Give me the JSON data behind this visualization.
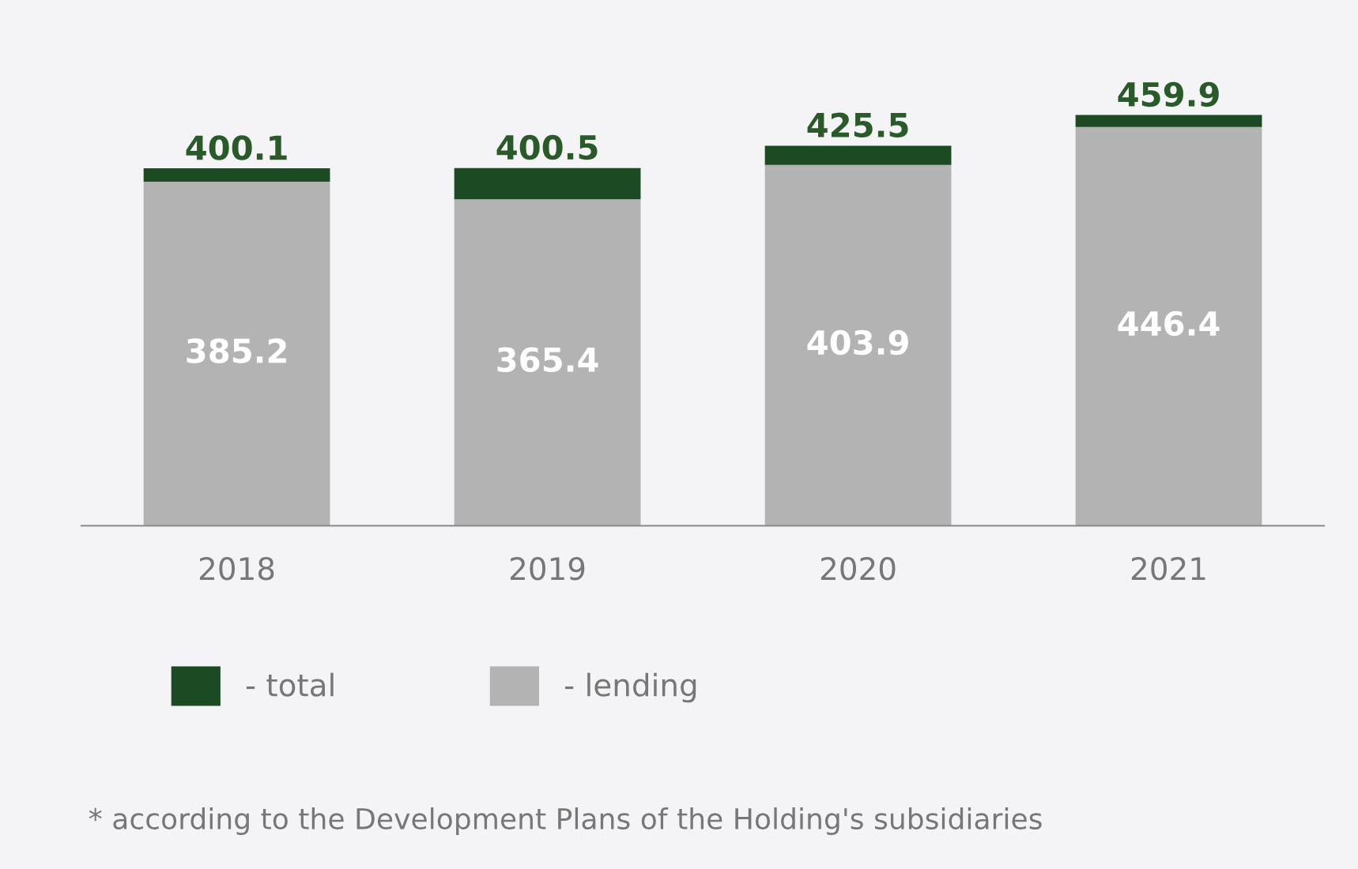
{
  "chart_data": {
    "type": "bar",
    "stacked": true,
    "categories": [
      "2018",
      "2019",
      "2020",
      "2021"
    ],
    "series": [
      {
        "name": "- lending",
        "color": "#b3b3b3",
        "values": [
          385.2,
          365.4,
          403.9,
          446.4
        ],
        "value_labels": [
          "385.2",
          "365.4",
          "403.9",
          "446.4"
        ]
      },
      {
        "name": "- total",
        "color": "#1c4a23",
        "values": [
          14.9,
          35.1,
          21.6,
          13.5
        ]
      }
    ],
    "totals": [
      "400.1",
      "400.5",
      "425.5",
      "459.9"
    ],
    "tick_labels": "x",
    "grid": false,
    "legend": "bottom",
    "annotations": [
      "* according to the Development Plans of the Holding's subsidiaries"
    ]
  }
}
